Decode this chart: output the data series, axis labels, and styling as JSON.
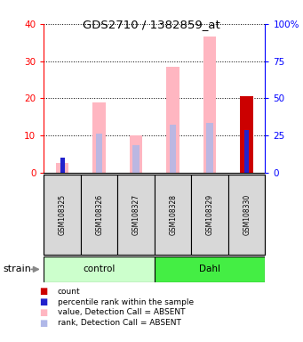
{
  "title": "GDS2710 / 1382859_at",
  "samples": [
    "GSM108325",
    "GSM108326",
    "GSM108327",
    "GSM108328",
    "GSM108329",
    "GSM108330"
  ],
  "groups": [
    "control",
    "control",
    "control",
    "Dahl",
    "Dahl",
    "Dahl"
  ],
  "value_absent": [
    2.5,
    19.0,
    10.0,
    28.5,
    36.5,
    null
  ],
  "rank_absent": [
    null,
    10.5,
    7.5,
    13.0,
    13.5,
    null
  ],
  "rank_absent_color": "#b0b8e8",
  "value_absent_color": "#ffb6c1",
  "count_value": [
    null,
    null,
    null,
    null,
    null,
    20.5
  ],
  "count_color": "#cc0000",
  "percentile_value": [
    4.0,
    null,
    null,
    null,
    null,
    11.5
  ],
  "percentile_color": "#2222cc",
  "ylim_left": [
    0,
    40
  ],
  "ylim_right": [
    0,
    100
  ],
  "yticks_left": [
    0,
    10,
    20,
    30,
    40
  ],
  "yticks_right": [
    0,
    25,
    50,
    75,
    100
  ],
  "ytick_labels_right": [
    "0",
    "25",
    "50",
    "75",
    "100%"
  ],
  "group_colors_control": "#ccffcc",
  "group_colors_dahl": "#44ee44",
  "group_label": "strain",
  "sample_bg_color": "#d8d8d8",
  "bar_width": 0.35,
  "rank_bar_width": 0.18,
  "percentile_bar_width": 0.12,
  "xlim": [
    -0.5,
    5.5
  ]
}
